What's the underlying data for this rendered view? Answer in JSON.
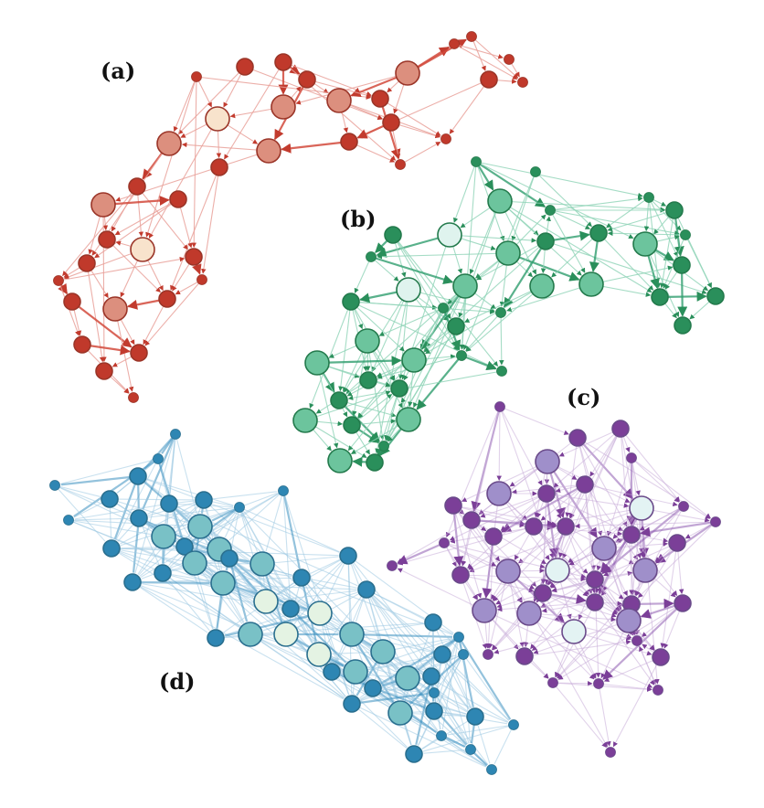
{
  "figure": {
    "panels": [
      {
        "label": "(a)",
        "palette": {
          "edge": "#d24a3c",
          "edge_light": "#e9a19a",
          "node_dark": "#c0392b",
          "node_mid": "#dc8f7e",
          "node_light": "#f8e3cc",
          "stroke": "#9b3528"
        }
      },
      {
        "label": "(b)",
        "palette": {
          "edge": "#2f9e6e",
          "edge_light": "#8fd3b6",
          "node_dark": "#2a8f5b",
          "node_mid": "#6cc49d",
          "node_light": "#dff3ee",
          "stroke": "#237a4c"
        }
      },
      {
        "label": "(c)",
        "palette": {
          "edge": "#8e5bb0",
          "edge_light": "#c9add9",
          "node_dark": "#7b3f98",
          "node_mid": "#9f8fca",
          "node_light": "#e3f3f3",
          "stroke": "#6a4a8a"
        }
      },
      {
        "label": "(d)",
        "palette": {
          "edge": "#3b8fc0",
          "edge_light": "#9cc9e2",
          "node_dark": "#2e86b3",
          "node_mid": "#79c1c6",
          "node_light": "#e4f3e3",
          "stroke": "#2a6f8f"
        }
      }
    ]
  }
}
